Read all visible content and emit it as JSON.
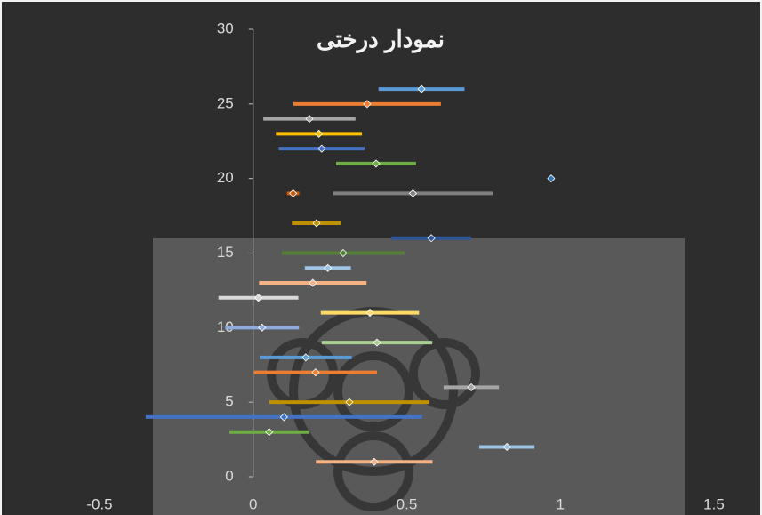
{
  "chart_data": {
    "type": "scatter",
    "title": "نمودار درختی",
    "xlim": [
      -0.5,
      1.5
    ],
    "xticks": [
      -0.5,
      0,
      0.5,
      1,
      1.5
    ],
    "ylim": [
      0,
      30
    ],
    "yticks": [
      0,
      5,
      10,
      15,
      20,
      25,
      30
    ],
    "points": [
      {
        "x": 0.548,
        "y": 26,
        "xerr": 0.14,
        "color": "#5b9bd5"
      },
      {
        "x": 0.371,
        "y": 25,
        "xerr": 0.24,
        "color": "#ed7d31"
      },
      {
        "x": 0.183,
        "y": 24,
        "xerr": 0.15,
        "color": "#a5a5a5"
      },
      {
        "x": 0.214,
        "y": 23,
        "xerr": 0.14,
        "color": "#ffc000"
      },
      {
        "x": 0.223,
        "y": 22,
        "xerr": 0.14,
        "color": "#4472c4"
      },
      {
        "x": 0.4,
        "y": 21,
        "xerr": 0.13,
        "color": "#70ad47"
      },
      {
        "x": 0.97,
        "y": 20,
        "xerr": 0.01,
        "color": "#2e75b6"
      },
      {
        "x": 0.13,
        "y": 19,
        "xerr": 0.02,
        "color": "#c55a11"
      },
      {
        "x": 0.52,
        "y": 19,
        "xerr": 0.26,
        "color": "#7f7f7f"
      },
      {
        "x": 0.206,
        "y": 17,
        "xerr": 0.08,
        "color": "#bf9000"
      },
      {
        "x": 0.58,
        "y": 16,
        "xerr": 0.13,
        "color": "#2f5597"
      },
      {
        "x": 0.293,
        "y": 15,
        "xerr": 0.2,
        "color": "#548235"
      },
      {
        "x": 0.243,
        "y": 14,
        "xerr": 0.075,
        "color": "#9dc3e6"
      },
      {
        "x": 0.194,
        "y": 13,
        "xerr": 0.175,
        "color": "#f4b183"
      },
      {
        "x": 0.017,
        "y": 12,
        "xerr": 0.13,
        "color": "#d9d9d9"
      },
      {
        "x": 0.38,
        "y": 11,
        "xerr": 0.16,
        "color": "#ffd966"
      },
      {
        "x": 0.029,
        "y": 10,
        "xerr": 0.12,
        "color": "#8faadc"
      },
      {
        "x": 0.403,
        "y": 9,
        "xerr": 0.18,
        "color": "#a9d18e"
      },
      {
        "x": 0.171,
        "y": 8,
        "xerr": 0.15,
        "color": "#5b9bd5"
      },
      {
        "x": 0.203,
        "y": 7,
        "xerr": 0.2,
        "color": "#ed7d31"
      },
      {
        "x": 0.71,
        "y": 6,
        "xerr": 0.09,
        "color": "#a5a5a5"
      },
      {
        "x": 0.313,
        "y": 5,
        "xerr": 0.26,
        "color": "#bf9000"
      },
      {
        "x": 0.1,
        "y": 4,
        "xerr": 0.45,
        "color": "#4472c4"
      },
      {
        "x": 0.052,
        "y": 3,
        "xerr": 0.13,
        "color": "#70ad47"
      },
      {
        "x": 0.826,
        "y": 2,
        "xerr": 0.09,
        "color": "#9dc3e6"
      },
      {
        "x": 0.394,
        "y": 1,
        "xerr": 0.19,
        "color": "#f4b183"
      }
    ]
  }
}
